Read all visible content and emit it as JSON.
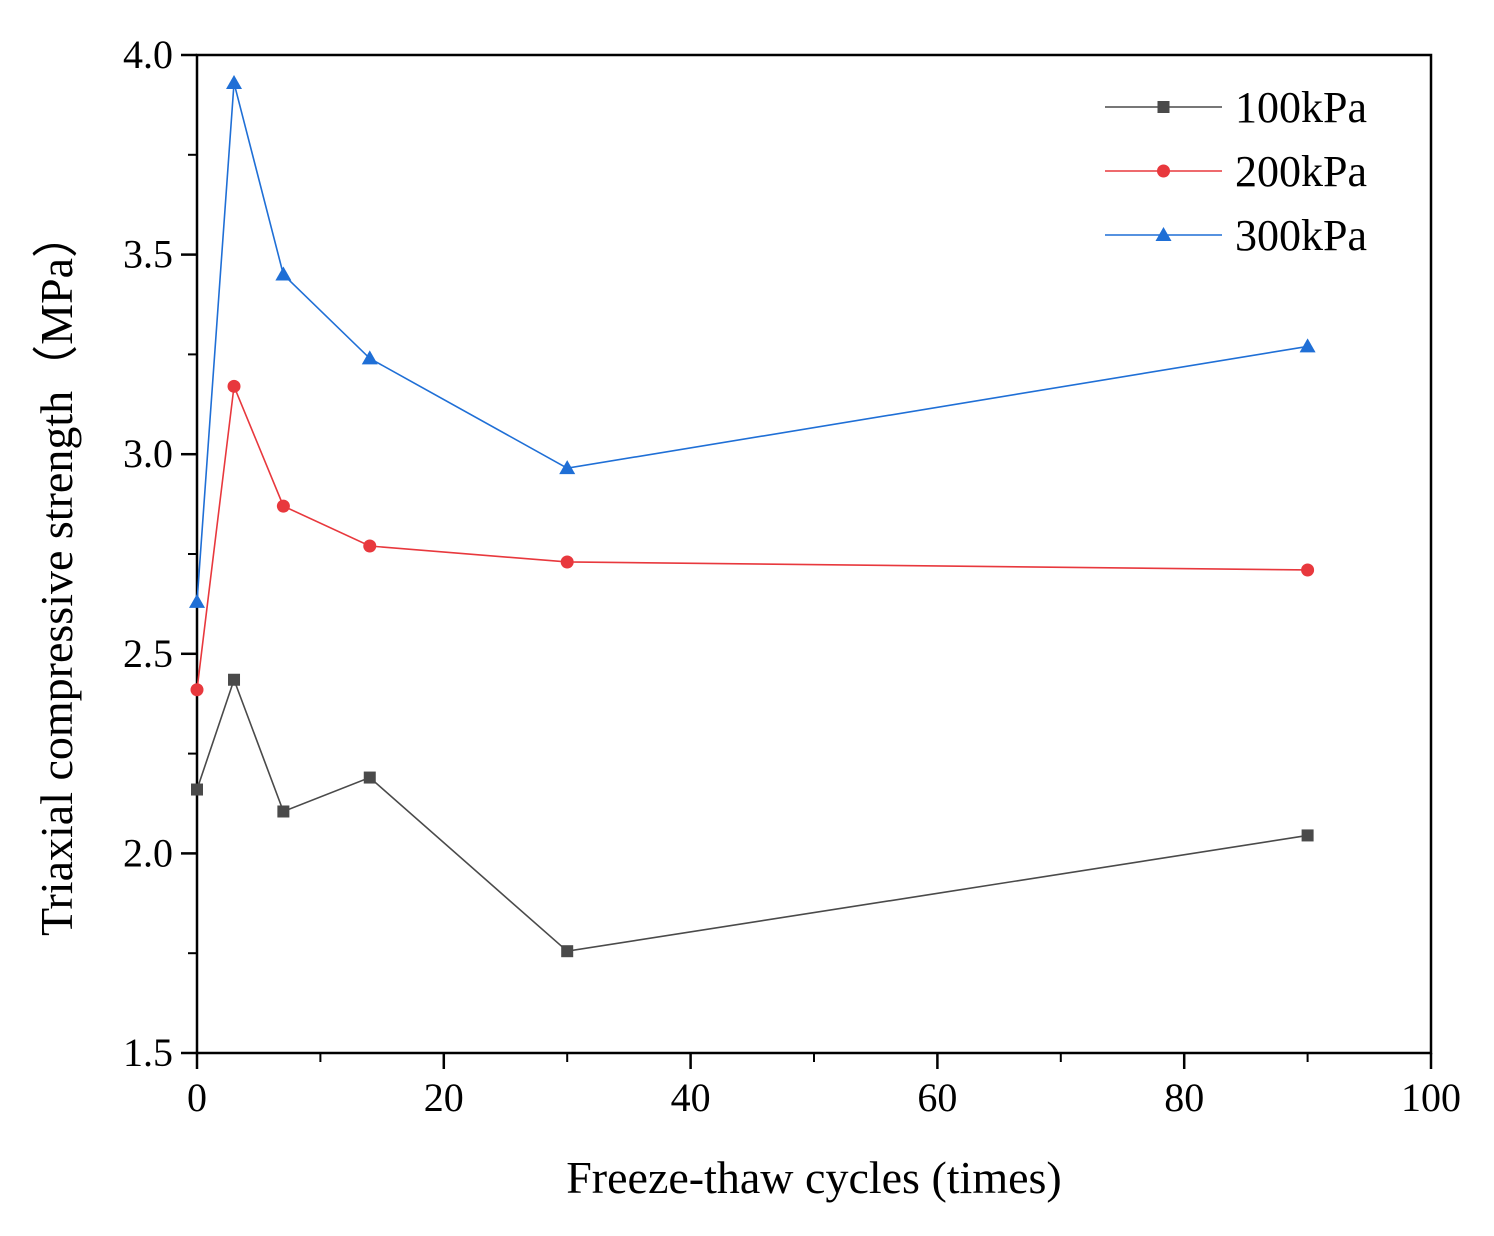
{
  "chart_data": {
    "type": "line",
    "xlabel": "Freeze-thaw cycles (times)",
    "ylabel": "Triaxial compressive strength（MPa）",
    "xlim": [
      0,
      100
    ],
    "ylim": [
      1.5,
      4.0
    ],
    "x_ticks": [
      "0",
      "20",
      "40",
      "60",
      "80",
      "100"
    ],
    "x_tick_values": [
      0,
      20,
      40,
      60,
      80,
      100
    ],
    "y_ticks": [
      "1.5",
      "2.0",
      "2.5",
      "3.0",
      "3.5",
      "4.0"
    ],
    "y_tick_values": [
      1.5,
      2.0,
      2.5,
      3.0,
      3.5,
      4.0
    ],
    "x_minor_ticks": [
      10,
      30,
      50,
      70,
      90
    ],
    "y_minor_ticks": [
      1.75,
      2.25,
      2.75,
      3.25,
      3.75
    ],
    "x": [
      0,
      3,
      7,
      14,
      30,
      90
    ],
    "grid": false,
    "legend_position": "top-right",
    "series": [
      {
        "name": "100kPa",
        "color": "#4a4a4a",
        "marker": "square",
        "values": [
          2.16,
          2.435,
          2.105,
          2.19,
          1.755,
          2.045
        ]
      },
      {
        "name": "200kPa",
        "color": "#e8383d",
        "marker": "circle",
        "values": [
          2.41,
          3.17,
          2.87,
          2.77,
          2.73,
          2.71
        ]
      },
      {
        "name": "300kPa",
        "color": "#1f6fd6",
        "marker": "triangle",
        "values": [
          2.63,
          3.93,
          3.45,
          3.24,
          2.965,
          3.27
        ]
      }
    ]
  }
}
